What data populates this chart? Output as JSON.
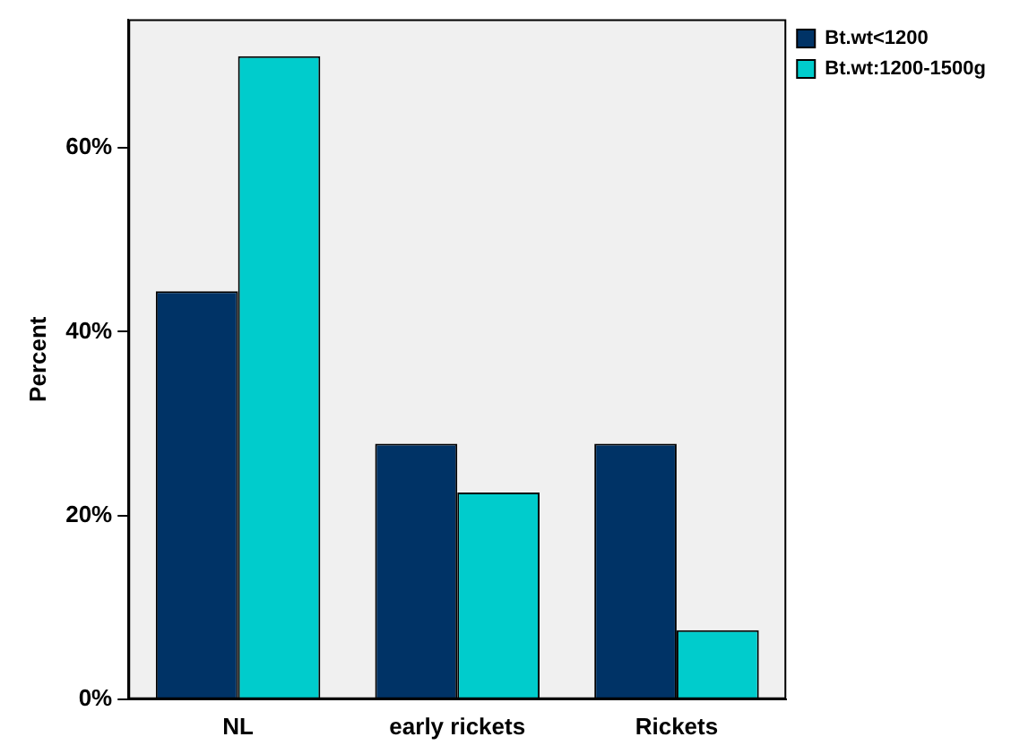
{
  "chart_data": {
    "type": "bar",
    "ylabel": "Percent",
    "categories": [
      "NL",
      "early rickets",
      "Rickets"
    ],
    "series": [
      {
        "name": "Bt.wt<1200",
        "color": "#003366",
        "values": [
          44.4,
          27.8,
          27.8
        ]
      },
      {
        "name": "Bt.wt:1200-1500g",
        "color": "#00cccc",
        "values": [
          70,
          22.5,
          7.5
        ]
      }
    ],
    "ylim": [
      0,
      74
    ],
    "yticks": [
      {
        "value": 0,
        "label": "0%"
      },
      {
        "value": 20,
        "label": "20%"
      },
      {
        "value": 40,
        "label": "40%"
      },
      {
        "value": 60,
        "label": "60%"
      }
    ],
    "grid": false,
    "legend": "top right"
  }
}
